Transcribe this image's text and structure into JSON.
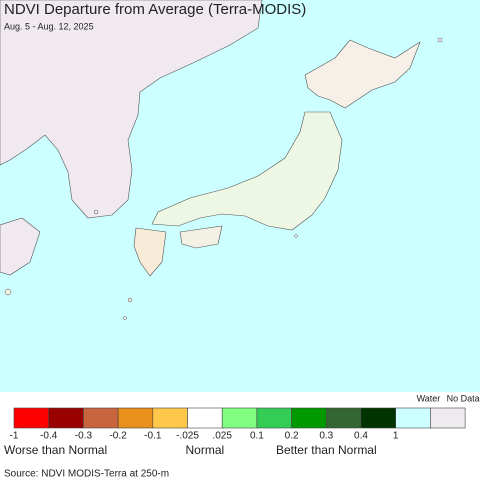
{
  "header": {
    "title": "NDVI Departure from Average (Terra-MODIS)",
    "subtitle": "Aug. 5 - Aug. 12, 2025"
  },
  "legend": {
    "colors": [
      "#ff0000",
      "#990000",
      "#c8653f",
      "#e8901a",
      "#ffc84a",
      "#ffffff",
      "#80ff80",
      "#33cc55",
      "#009900",
      "#336633",
      "#003300"
    ],
    "ticks": [
      "-1",
      "-0.4",
      "-0.3",
      "-0.2",
      "-0.1",
      "-.025",
      ".025",
      "0.1",
      "0.2",
      "0.3",
      "0.4",
      "1"
    ],
    "captions": [
      "Worse than Normal",
      "Normal",
      "Better than Normal"
    ],
    "extra": [
      {
        "label": "Water",
        "color": "#ccffff"
      },
      {
        "label": "No Data",
        "color": "#eeeaee"
      }
    ]
  },
  "source": "Source: NDVI MODIS-Terra at 250-m"
}
